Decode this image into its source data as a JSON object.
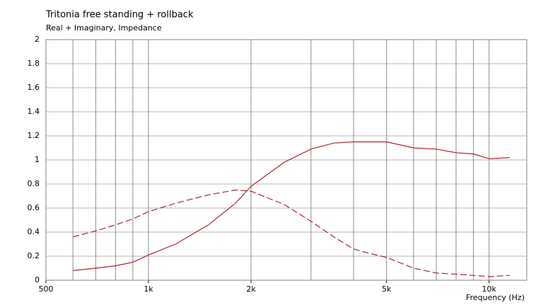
{
  "chart_data": {
    "type": "line",
    "title": "Tritonia free standing + rollback",
    "subtitle": "Real + Imaginary, Impedance",
    "x_label": "Frequency  (Hz)",
    "log_x": true,
    "x": [
      600,
      700,
      800,
      900,
      1000,
      1200,
      1500,
      1800,
      2000,
      2500,
      3000,
      3500,
      4000,
      4500,
      5000,
      6000,
      7000,
      8000,
      9000,
      10000,
      11500
    ],
    "series": [
      {
        "color": "#b0242b",
        "dash": false,
        "values": [
          0.08,
          0.1,
          0.12,
          0.15,
          0.21,
          0.3,
          0.46,
          0.64,
          0.78,
          0.98,
          1.09,
          1.14,
          1.15,
          1.15,
          1.15,
          1.1,
          1.09,
          1.06,
          1.05,
          1.01,
          1.02
        ]
      },
      {
        "color": "#b0242b",
        "dash": true,
        "values": [
          0.36,
          0.41,
          0.46,
          0.51,
          0.57,
          0.64,
          0.71,
          0.75,
          0.74,
          0.63,
          0.49,
          0.36,
          0.26,
          0.22,
          0.19,
          0.1,
          0.06,
          0.05,
          0.04,
          0.03,
          0.04
        ]
      }
    ],
    "xlim": [
      500,
      12900
    ],
    "xticks": [
      500,
      {
        "value": 1000,
        "label": "1k"
      },
      {
        "value": 2000,
        "label": "2k"
      },
      {
        "value": 5000,
        "label": "5k"
      },
      {
        "value": 10000,
        "label": "10k"
      }
    ],
    "xgrid": [
      600,
      700,
      800,
      900,
      1000,
      2000,
      3000,
      4000,
      5000,
      6000,
      7000,
      8000,
      9000,
      10000
    ],
    "ylim": [
      0,
      2
    ],
    "yticks": [
      0,
      0.2,
      0.4,
      0.6,
      0.8,
      1,
      1.2,
      1.4,
      1.6,
      1.8,
      2
    ],
    "grid": true
  }
}
